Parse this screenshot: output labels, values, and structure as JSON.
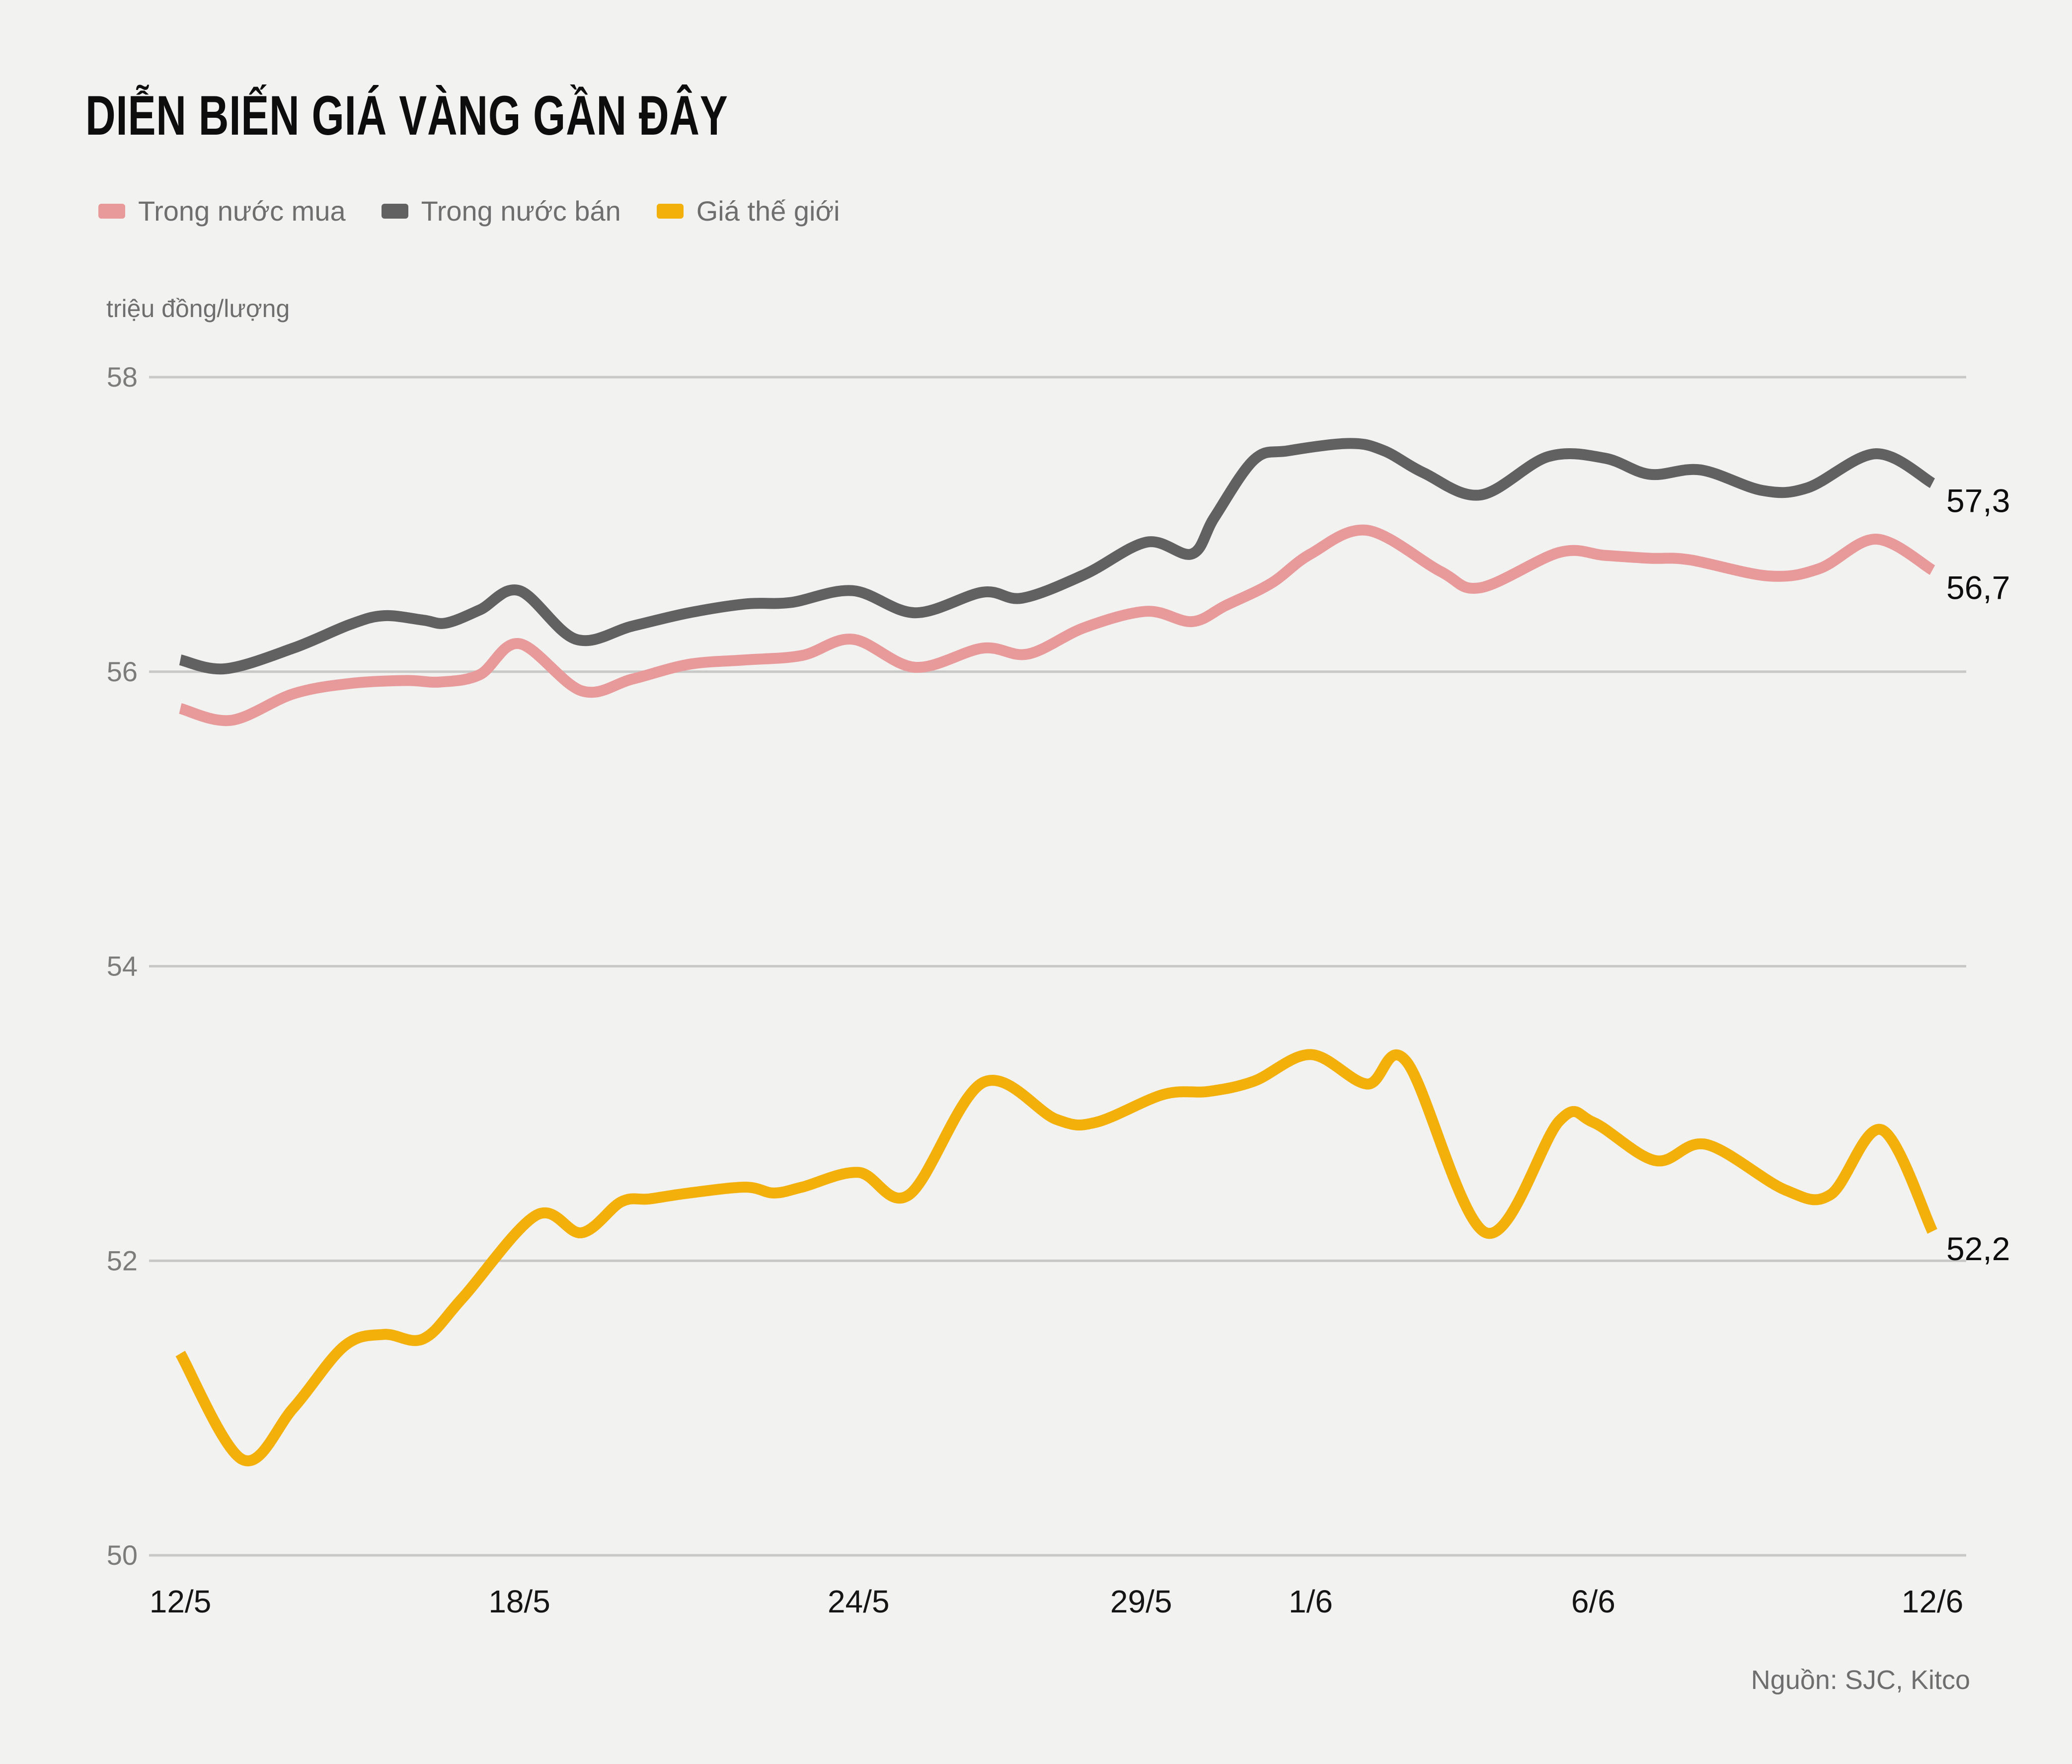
{
  "page": {
    "background": "#f2f2f1"
  },
  "header": {
    "title": "DIỄN BIẾN GIÁ VÀNG GẦN ĐÂY"
  },
  "legend": {
    "items": [
      {
        "label": "Trong nước mua",
        "color": "#e89a9a"
      },
      {
        "label": "Trong nước bán",
        "color": "#616161"
      },
      {
        "label": "Giá thế giới",
        "color": "#f3af0a"
      }
    ]
  },
  "unit_label": "triệu đồng/lượng",
  "source": "Nguồn: SJC, Kitco",
  "colors": {
    "background": "#f2f2f1",
    "gridline": "#c8c8c6",
    "y_tick_text": "#7c7c7a",
    "x_tick_text": "#151515",
    "end_label_text": "#0d0d0d"
  },
  "chart_data": {
    "type": "line",
    "title": "DIỄN BIẾN GIÁ VÀNG GẦN ĐÂY",
    "ylabel": "triệu đồng/lượng",
    "ylim": [
      50,
      58
    ],
    "x_domain_days": [
      0,
      31
    ],
    "grid": true,
    "legend_position": "top-left",
    "y_ticks": [
      {
        "value": 58,
        "label": "58"
      },
      {
        "value": 56,
        "label": "56"
      },
      {
        "value": 54,
        "label": "54"
      },
      {
        "value": 52,
        "label": "52"
      },
      {
        "value": 50,
        "label": "50"
      }
    ],
    "x_ticks": [
      {
        "day": 0,
        "label": "12/5"
      },
      {
        "day": 6,
        "label": "18/5"
      },
      {
        "day": 12,
        "label": "24/5"
      },
      {
        "day": 17,
        "label": "29/5"
      },
      {
        "day": 20,
        "label": "1/6"
      },
      {
        "day": 25,
        "label": "6/6"
      },
      {
        "day": 31,
        "label": "12/6"
      }
    ],
    "series": [
      {
        "name": "Trong nước mua",
        "color": "#e89a9a",
        "end_label": "56,7",
        "points": [
          [
            0,
            55.75
          ],
          [
            0.9,
            55.67
          ],
          [
            2,
            55.85
          ],
          [
            3,
            55.92
          ],
          [
            4,
            55.94
          ],
          [
            4.6,
            55.93
          ],
          [
            5.3,
            55.98
          ],
          [
            6,
            56.19
          ],
          [
            7.1,
            55.87
          ],
          [
            8,
            55.95
          ],
          [
            9,
            56.05
          ],
          [
            10,
            56.08
          ],
          [
            11,
            56.11
          ],
          [
            11.9,
            56.22
          ],
          [
            13,
            56.03
          ],
          [
            14.2,
            56.16
          ],
          [
            15,
            56.12
          ],
          [
            16,
            56.3
          ],
          [
            17.1,
            56.41
          ],
          [
            17.9,
            56.34
          ],
          [
            18.5,
            56.45
          ],
          [
            19.3,
            56.6
          ],
          [
            20,
            56.8
          ],
          [
            21,
            56.96
          ],
          [
            22.3,
            56.68
          ],
          [
            23,
            56.57
          ],
          [
            24.4,
            56.81
          ],
          [
            25.2,
            56.79
          ],
          [
            26,
            56.77
          ],
          [
            26.7,
            56.76
          ],
          [
            28.1,
            56.65
          ],
          [
            29,
            56.7
          ],
          [
            30,
            56.9
          ],
          [
            31,
            56.69
          ]
        ]
      },
      {
        "name": "Trong nước bán",
        "color": "#616161",
        "end_label": "57,3",
        "points": [
          [
            0,
            56.08
          ],
          [
            0.8,
            56.02
          ],
          [
            2,
            56.16
          ],
          [
            3,
            56.32
          ],
          [
            3.6,
            56.38
          ],
          [
            4.3,
            56.35
          ],
          [
            4.7,
            56.33
          ],
          [
            5.3,
            56.42
          ],
          [
            6,
            56.55
          ],
          [
            7,
            56.22
          ],
          [
            8,
            56.31
          ],
          [
            9,
            56.4
          ],
          [
            10,
            56.46
          ],
          [
            10.8,
            56.47
          ],
          [
            11.9,
            56.55
          ],
          [
            13,
            56.4
          ],
          [
            14.2,
            56.54
          ],
          [
            14.9,
            56.5
          ],
          [
            16,
            56.66
          ],
          [
            17.1,
            56.88
          ],
          [
            17.9,
            56.8
          ],
          [
            18.3,
            57.05
          ],
          [
            19,
            57.44
          ],
          [
            19.6,
            57.5
          ],
          [
            20.7,
            57.55
          ],
          [
            21.3,
            57.5
          ],
          [
            22,
            57.35
          ],
          [
            23,
            57.2
          ],
          [
            24.2,
            57.46
          ],
          [
            25.2,
            57.45
          ],
          [
            26,
            57.34
          ],
          [
            26.9,
            57.37
          ],
          [
            28,
            57.23
          ],
          [
            28.8,
            57.25
          ],
          [
            30,
            57.48
          ],
          [
            31,
            57.28
          ]
        ]
      },
      {
        "name": "Giá thế giới",
        "color": "#f3af0a",
        "end_label": "52,2",
        "points": [
          [
            0,
            51.37
          ],
          [
            1.1,
            50.65
          ],
          [
            2,
            51.0
          ],
          [
            2.9,
            51.42
          ],
          [
            3.6,
            51.5
          ],
          [
            4.3,
            51.47
          ],
          [
            5,
            51.75
          ],
          [
            6.3,
            52.31
          ],
          [
            7.1,
            52.19
          ],
          [
            7.8,
            52.4
          ],
          [
            8.3,
            52.42
          ],
          [
            9,
            52.46
          ],
          [
            10,
            52.5
          ],
          [
            10.5,
            52.46
          ],
          [
            11,
            52.5
          ],
          [
            12,
            52.6
          ],
          [
            12.9,
            52.45
          ],
          [
            14.2,
            53.21
          ],
          [
            15.5,
            52.96
          ],
          [
            16.2,
            52.94
          ],
          [
            17.4,
            53.13
          ],
          [
            18.2,
            53.15
          ],
          [
            19,
            53.22
          ],
          [
            20,
            53.4
          ],
          [
            21,
            53.2
          ],
          [
            21.7,
            53.35
          ],
          [
            23.1,
            52.19
          ],
          [
            24.4,
            52.95
          ],
          [
            25,
            52.94
          ],
          [
            26.1,
            52.68
          ],
          [
            27,
            52.79
          ],
          [
            28.4,
            52.48
          ],
          [
            29.2,
            52.45
          ],
          [
            30.1,
            52.89
          ],
          [
            31,
            52.2
          ]
        ]
      }
    ]
  }
}
